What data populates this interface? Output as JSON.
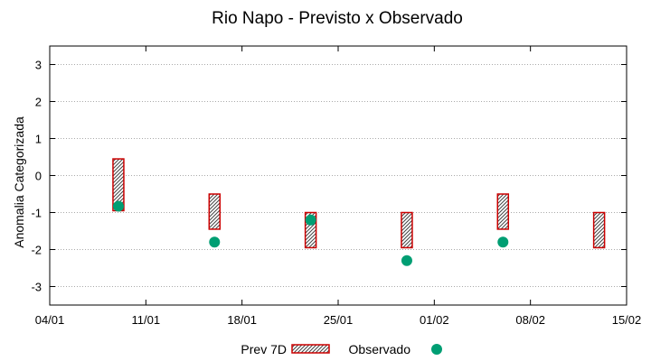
{
  "chart_data": {
    "type": "scatter",
    "title": "Rio Napo - Previsto x Observado",
    "xlabel": "",
    "ylabel": "Anomalia Categorizada",
    "xlim": [
      "2021-01-04",
      "2021-02-15"
    ],
    "ylim": [
      -3.5,
      3.5
    ],
    "x_ticks": [
      "04/01",
      "11/01",
      "18/01",
      "25/01",
      "01/02",
      "08/02",
      "15/02"
    ],
    "y_ticks": [
      3,
      2,
      1,
      0,
      -1,
      -2,
      -3
    ],
    "grid": true,
    "legend_position": "bottom-center",
    "series": [
      {
        "name": "Prev 7D",
        "kind": "range-bar",
        "color": "#cc0000",
        "points": [
          {
            "date": "2021-01-09",
            "low": -0.95,
            "high": 0.45
          },
          {
            "date": "2021-01-16",
            "low": -1.45,
            "high": -0.5
          },
          {
            "date": "2021-01-23",
            "low": -1.95,
            "high": -1.0
          },
          {
            "date": "2021-01-30",
            "low": -1.95,
            "high": -1.0
          },
          {
            "date": "2021-02-06",
            "low": -1.45,
            "high": -0.5
          },
          {
            "date": "2021-02-13",
            "low": -1.95,
            "high": -1.0
          }
        ]
      },
      {
        "name": "Observado",
        "kind": "point",
        "color": "#009e73",
        "points": [
          {
            "date": "2021-01-09",
            "value": -0.83
          },
          {
            "date": "2021-01-16",
            "value": -1.8
          },
          {
            "date": "2021-01-23",
            "value": -1.2
          },
          {
            "date": "2021-01-30",
            "value": -2.3
          },
          {
            "date": "2021-02-06",
            "value": -1.8
          }
        ]
      }
    ]
  }
}
